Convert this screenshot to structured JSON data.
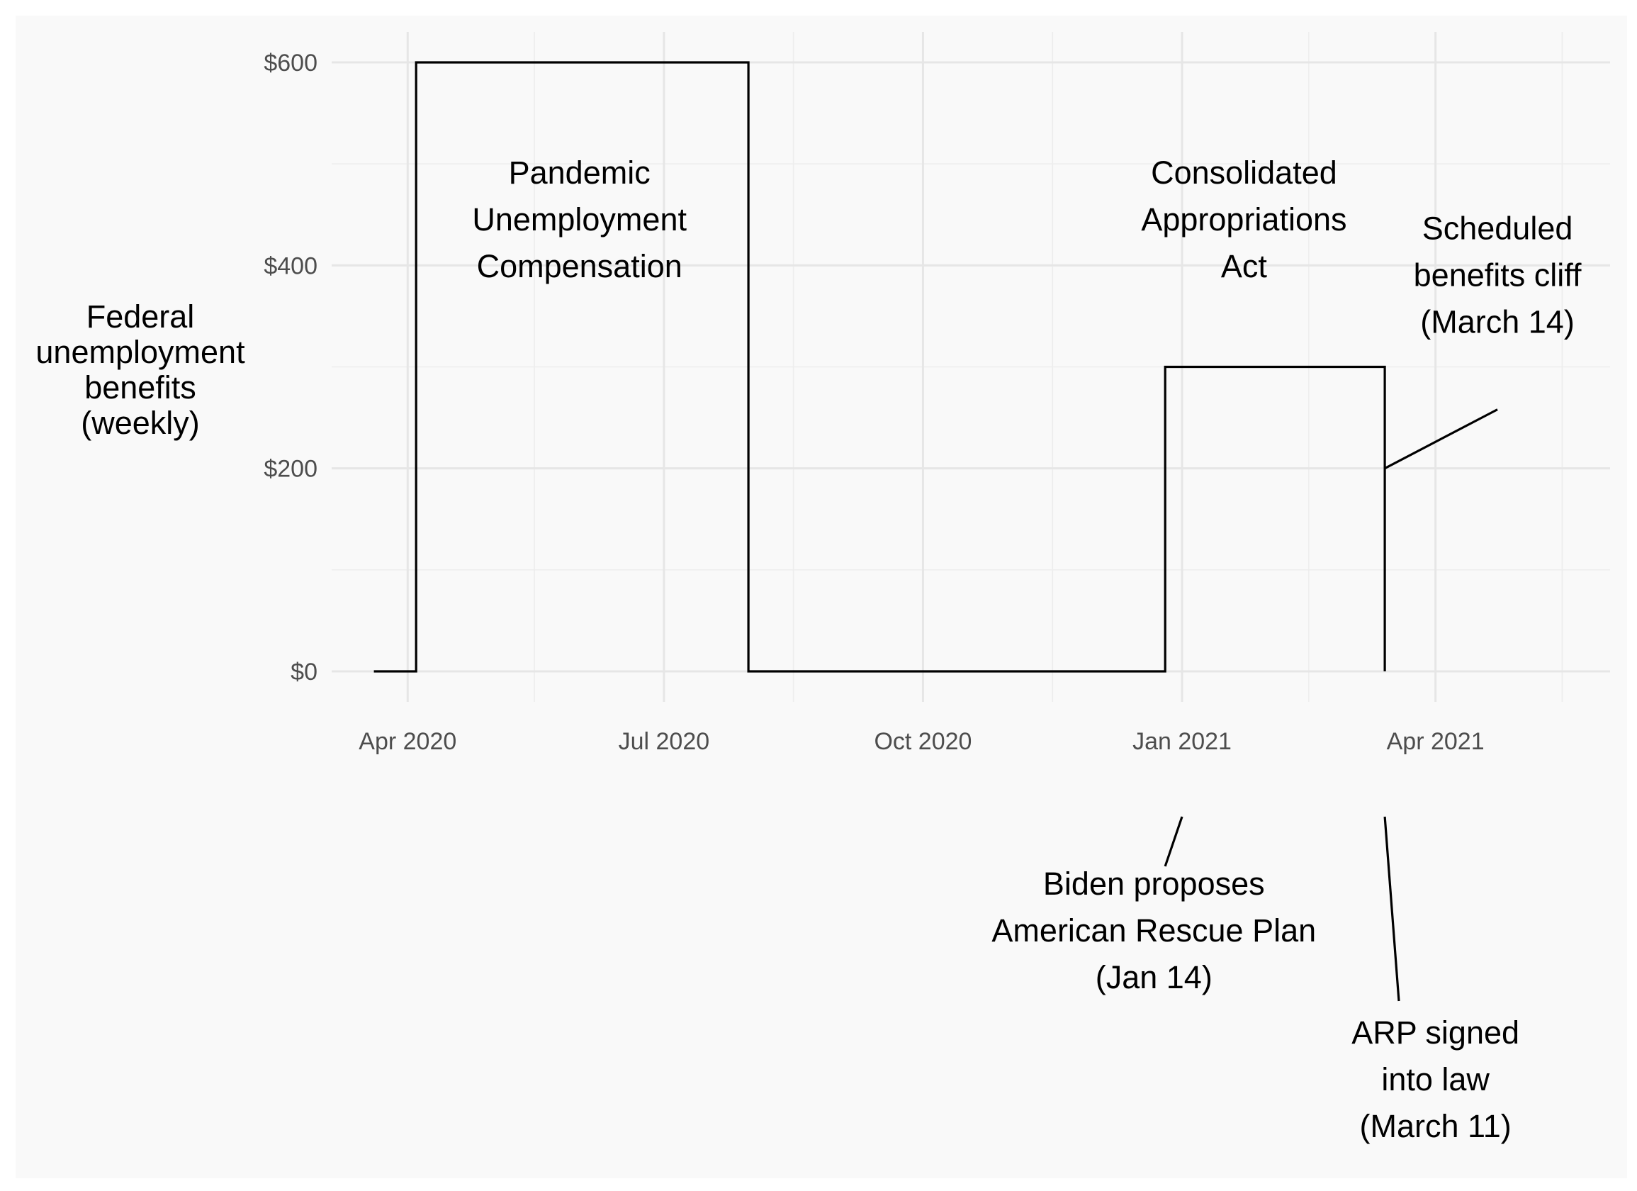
{
  "chart_data": {
    "type": "line",
    "title": "",
    "xlabel": "",
    "ylabel_lines": [
      "Federal",
      "unemployment",
      "benefits",
      "(weekly)"
    ],
    "x_tick_labels": [
      {
        "date": "2020-04-01",
        "label": "Apr 2020"
      },
      {
        "date": "2020-07-01",
        "label": "Jul 2020"
      },
      {
        "date": "2020-10-01",
        "label": "Oct 2020"
      },
      {
        "date": "2021-01-01",
        "label": "Jan 2021"
      },
      {
        "date": "2021-04-01",
        "label": "Apr 2021"
      }
    ],
    "x_minor_gridlines": [
      "2020-05-16",
      "2020-08-16",
      "2020-11-16",
      "2021-02-15",
      "2021-05-16"
    ],
    "y_tick_labels": [
      {
        "value": 0,
        "label": "$0"
      },
      {
        "value": 200,
        "label": "$200"
      },
      {
        "value": 400,
        "label": "$400"
      },
      {
        "value": 600,
        "label": "$600"
      }
    ],
    "y_minor_gridlines": [
      100,
      300,
      500
    ],
    "xlim": [
      "2020-03-05",
      "2021-06-02"
    ],
    "ylim": [
      -30,
      630
    ],
    "grid": true,
    "legend": "none",
    "series": [
      {
        "points": [
          {
            "x": "2020-03-20",
            "y": 0
          },
          {
            "x": "2020-04-04",
            "y": 0
          },
          {
            "x": "2020-04-04",
            "y": 600
          },
          {
            "x": "2020-07-31",
            "y": 600
          },
          {
            "x": "2020-07-31",
            "y": 0
          },
          {
            "x": "2020-12-26",
            "y": 0
          },
          {
            "x": "2020-12-26",
            "y": 300
          },
          {
            "x": "2021-03-14",
            "y": 300
          },
          {
            "x": "2021-03-14",
            "y": 0
          }
        ]
      }
    ],
    "annotations": [
      {
        "lines": [
          "Pandemic",
          "Unemployment",
          "Compensation"
        ],
        "x": "2020-06-01",
        "y": 445
      },
      {
        "lines": [
          "Consolidated",
          "Appropriations",
          "Act"
        ],
        "x": "2021-01-23",
        "y": 445
      },
      {
        "lines": [
          "Scheduled",
          "benefits cliff",
          "(March 14)"
        ],
        "x": "2021-04-23",
        "y": 390,
        "pointer": {
          "from": {
            "x": "2021-04-23",
            "y": 258
          },
          "to": {
            "x": "2021-03-14",
            "y": 200
          }
        }
      },
      {
        "lines": [
          "Biden proposes",
          "American Rescue Plan",
          "(Jan 14)"
        ],
        "below_axis": "row1",
        "x": "2020-12-22",
        "pointer": {
          "to_x": "2021-01-01",
          "from_x": "2020-12-26"
        }
      },
      {
        "lines": [
          "ARP signed",
          "into law",
          "(March 11)"
        ],
        "below_axis": "row2",
        "x": "2021-04-01",
        "pointer": {
          "to_x": "2021-03-14",
          "from_x": "2021-03-19"
        }
      }
    ]
  }
}
